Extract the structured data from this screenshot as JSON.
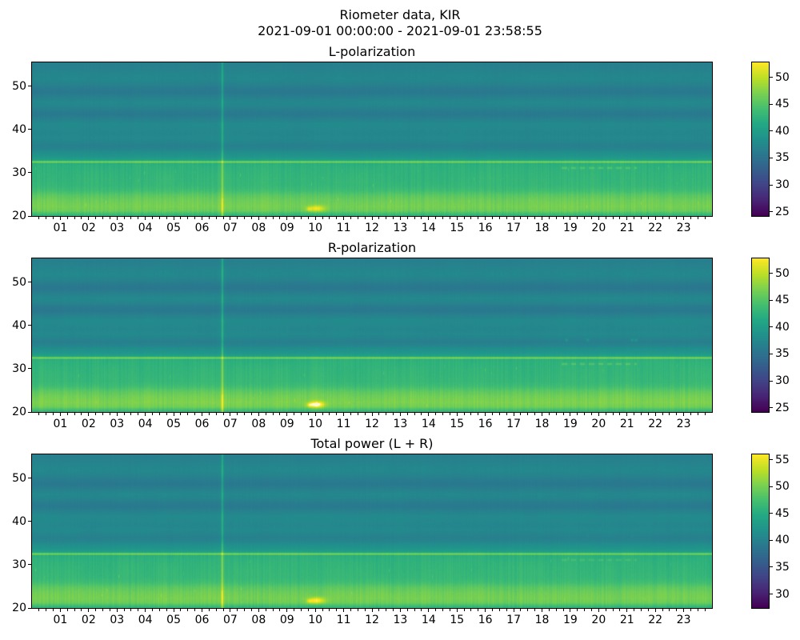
{
  "figure": {
    "title": "Riometer data, KIR",
    "date_range": "2021-09-01 00:00:00 - 2021-09-01 23:58:55"
  },
  "chart_data": [
    {
      "type": "heatmap",
      "title": "L-polarization",
      "x": {
        "label": "",
        "range_hours": [
          0,
          24
        ],
        "tick_labels": [
          "01",
          "02",
          "03",
          "04",
          "05",
          "06",
          "07",
          "08",
          "09",
          "10",
          "11",
          "12",
          "13",
          "14",
          "15",
          "16",
          "17",
          "18",
          "19",
          "20",
          "21",
          "22",
          "23"
        ],
        "minor_tick_step_hours": 0.25
      },
      "y": {
        "label": "",
        "range": [
          20,
          55.5
        ],
        "ticks": [
          20,
          30,
          40,
          50
        ],
        "tick_labels": [
          "20",
          "30",
          "40",
          "50"
        ]
      },
      "colorbar": {
        "cmap": "viridis",
        "vmin": 24.2,
        "vmax": 52.8,
        "ticks": [
          25,
          30,
          35,
          40,
          45,
          50
        ],
        "tick_labels": [
          "25",
          "30",
          "35",
          "40",
          "45",
          "50"
        ]
      },
      "profile": [
        [
          20.0,
          42.2
        ],
        [
          20.6,
          44.2
        ],
        [
          21.2,
          46.3
        ],
        [
          22.2,
          46.9
        ],
        [
          23.6,
          46.4
        ],
        [
          24.8,
          45.4
        ],
        [
          25.9,
          43.9
        ],
        [
          26.9,
          43.2
        ],
        [
          28.5,
          43.0
        ],
        [
          30.0,
          42.8
        ],
        [
          31.5,
          42.5
        ],
        [
          32.15,
          42.2
        ],
        [
          32.38,
          45.5
        ],
        [
          32.5,
          48.2
        ],
        [
          32.62,
          45.5
        ],
        [
          32.9,
          40.6
        ],
        [
          33.6,
          39.2
        ],
        [
          34.6,
          38.3
        ],
        [
          35.4,
          37.2
        ],
        [
          36.2,
          36.6
        ],
        [
          37.0,
          37.1
        ],
        [
          38.0,
          37.6
        ],
        [
          39.0,
          37.3
        ],
        [
          40.0,
          37.5
        ],
        [
          41.2,
          37.7
        ],
        [
          42.2,
          36.9
        ],
        [
          43.4,
          35.8
        ],
        [
          44.4,
          36.2
        ],
        [
          45.4,
          37.2
        ],
        [
          46.4,
          37.5
        ],
        [
          47.4,
          36.6
        ],
        [
          48.6,
          35.7
        ],
        [
          49.6,
          36.1
        ],
        [
          50.6,
          36.9
        ],
        [
          51.6,
          37.4
        ],
        [
          52.6,
          37.3
        ],
        [
          53.6,
          36.9
        ],
        [
          54.6,
          36.6
        ],
        [
          55.5,
          36.4
        ]
      ],
      "events": [
        {
          "kind": "vline",
          "t": 6.72,
          "sigma": 0.022,
          "amp": 4.6,
          "halo_amp": 0.6,
          "halo_sigma": 0.09
        },
        {
          "kind": "blob",
          "t": 10.05,
          "f": 21.7,
          "sigma_t": 0.2,
          "sigma_f": 0.5,
          "amp": 6.0
        },
        {
          "kind": "blob",
          "t": 9.78,
          "f": 21.6,
          "sigma_t": 0.07,
          "sigma_f": 0.35,
          "amp": 3.0
        },
        {
          "kind": "dashes",
          "f": 31.1,
          "t_start": 18.7,
          "t_end": 21.3,
          "sigma_f": 0.16,
          "amp": 2.6,
          "period": 0.32,
          "duty": 0.55
        }
      ]
    },
    {
      "type": "heatmap",
      "title": "R-polarization",
      "x": {
        "label": "",
        "range_hours": [
          0,
          24
        ],
        "tick_labels": [
          "01",
          "02",
          "03",
          "04",
          "05",
          "06",
          "07",
          "08",
          "09",
          "10",
          "11",
          "12",
          "13",
          "14",
          "15",
          "16",
          "17",
          "18",
          "19",
          "20",
          "21",
          "22",
          "23"
        ],
        "minor_tick_step_hours": 0.25
      },
      "y": {
        "label": "",
        "range": [
          20,
          55.5
        ],
        "ticks": [
          20,
          30,
          40,
          50
        ],
        "tick_labels": [
          "20",
          "30",
          "40",
          "50"
        ]
      },
      "colorbar": {
        "cmap": "viridis",
        "vmin": 24.2,
        "vmax": 52.8,
        "ticks": [
          25,
          30,
          35,
          40,
          45,
          50
        ],
        "tick_labels": [
          "25",
          "30",
          "35",
          "40",
          "45",
          "50"
        ]
      },
      "profile": [
        [
          20.0,
          42.2
        ],
        [
          20.6,
          44.4
        ],
        [
          21.2,
          46.5
        ],
        [
          22.2,
          47.2
        ],
        [
          23.6,
          46.6
        ],
        [
          24.8,
          45.5
        ],
        [
          25.9,
          43.9
        ],
        [
          26.9,
          43.2
        ],
        [
          28.5,
          43.0
        ],
        [
          30.0,
          42.8
        ],
        [
          31.5,
          42.5
        ],
        [
          32.15,
          42.2
        ],
        [
          32.38,
          45.5
        ],
        [
          32.5,
          48.2
        ],
        [
          32.62,
          45.5
        ],
        [
          32.9,
          40.6
        ],
        [
          33.6,
          39.2
        ],
        [
          34.6,
          38.3
        ],
        [
          35.4,
          37.1
        ],
        [
          36.2,
          36.4
        ],
        [
          37.0,
          37.0
        ],
        [
          38.0,
          37.6
        ],
        [
          39.0,
          37.3
        ],
        [
          40.0,
          37.5
        ],
        [
          41.2,
          37.7
        ],
        [
          42.2,
          36.9
        ],
        [
          43.4,
          35.6
        ],
        [
          44.4,
          36.1
        ],
        [
          45.4,
          37.2
        ],
        [
          46.4,
          37.5
        ],
        [
          47.4,
          36.6
        ],
        [
          48.6,
          35.5
        ],
        [
          49.6,
          36.0
        ],
        [
          50.6,
          36.9
        ],
        [
          51.6,
          37.4
        ],
        [
          52.6,
          37.3
        ],
        [
          53.6,
          36.9
        ],
        [
          54.6,
          36.6
        ],
        [
          55.5,
          36.4
        ]
      ],
      "events": [
        {
          "kind": "vline",
          "t": 6.72,
          "sigma": 0.022,
          "amp": 5.2,
          "halo_amp": 0.7,
          "halo_sigma": 0.09
        },
        {
          "kind": "blob",
          "t": 10.05,
          "f": 21.7,
          "sigma_t": 0.18,
          "sigma_f": 0.5,
          "amp": 9.5
        },
        {
          "kind": "blob",
          "t": 9.8,
          "f": 21.6,
          "sigma_t": 0.07,
          "sigma_f": 0.35,
          "amp": 4.0
        },
        {
          "kind": "dashes",
          "f": 31.1,
          "t_start": 18.7,
          "t_end": 21.3,
          "sigma_f": 0.16,
          "amp": 2.6,
          "period": 0.32,
          "duty": 0.55
        },
        {
          "kind": "dots",
          "f": 36.6,
          "times": [
            18.87,
            19.62,
            21.18,
            21.32
          ],
          "sigma_t": 0.035,
          "sigma_f": 0.22,
          "amp": 2.8
        }
      ]
    },
    {
      "type": "heatmap",
      "title": "Total power (L + R)",
      "x": {
        "label": "",
        "range_hours": [
          0,
          24
        ],
        "tick_labels": [
          "01",
          "02",
          "03",
          "04",
          "05",
          "06",
          "07",
          "08",
          "09",
          "10",
          "11",
          "12",
          "13",
          "14",
          "15",
          "16",
          "17",
          "18",
          "19",
          "20",
          "21",
          "22",
          "23"
        ],
        "minor_tick_step_hours": 0.25
      },
      "y": {
        "label": "",
        "range": [
          20,
          55.5
        ],
        "ticks": [
          20,
          30,
          40,
          50
        ],
        "tick_labels": [
          "20",
          "30",
          "40",
          "50"
        ]
      },
      "colorbar": {
        "cmap": "viridis",
        "vmin": 27.4,
        "vmax": 56.0,
        "ticks": [
          30,
          35,
          40,
          45,
          50,
          55
        ],
        "tick_labels": [
          "30",
          "35",
          "40",
          "45",
          "50",
          "55"
        ]
      },
      "profile": [
        [
          20.0,
          45.4
        ],
        [
          20.6,
          47.4
        ],
        [
          21.2,
          49.5
        ],
        [
          22.2,
          50.1
        ],
        [
          23.6,
          49.6
        ],
        [
          24.8,
          48.6
        ],
        [
          25.9,
          47.1
        ],
        [
          26.9,
          46.4
        ],
        [
          28.5,
          46.2
        ],
        [
          30.0,
          46.0
        ],
        [
          31.5,
          45.7
        ],
        [
          32.15,
          45.4
        ],
        [
          32.38,
          48.7
        ],
        [
          32.5,
          51.4
        ],
        [
          32.62,
          48.7
        ],
        [
          32.9,
          43.8
        ],
        [
          33.6,
          42.4
        ],
        [
          34.6,
          41.5
        ],
        [
          35.4,
          40.4
        ],
        [
          36.2,
          39.8
        ],
        [
          37.0,
          40.3
        ],
        [
          38.0,
          40.8
        ],
        [
          39.0,
          40.5
        ],
        [
          40.0,
          40.7
        ],
        [
          41.2,
          40.9
        ],
        [
          42.2,
          40.1
        ],
        [
          43.4,
          39.0
        ],
        [
          44.4,
          39.4
        ],
        [
          45.4,
          40.4
        ],
        [
          46.4,
          40.7
        ],
        [
          47.4,
          39.8
        ],
        [
          48.6,
          38.9
        ],
        [
          49.6,
          39.3
        ],
        [
          50.6,
          40.1
        ],
        [
          51.6,
          40.6
        ],
        [
          52.6,
          40.5
        ],
        [
          53.6,
          40.1
        ],
        [
          54.6,
          39.8
        ],
        [
          55.5,
          39.6
        ]
      ],
      "events": [
        {
          "kind": "vline",
          "t": 6.72,
          "sigma": 0.022,
          "amp": 4.9,
          "halo_amp": 0.6,
          "halo_sigma": 0.09
        },
        {
          "kind": "blob",
          "t": 10.05,
          "f": 21.7,
          "sigma_t": 0.19,
          "sigma_f": 0.5,
          "amp": 7.2
        },
        {
          "kind": "blob",
          "t": 9.8,
          "f": 21.6,
          "sigma_t": 0.07,
          "sigma_f": 0.35,
          "amp": 3.2
        },
        {
          "kind": "dashes",
          "f": 31.1,
          "t_start": 18.7,
          "t_end": 21.3,
          "sigma_f": 0.16,
          "amp": 1.7,
          "period": 0.32,
          "duty": 0.55
        },
        {
          "kind": "dots",
          "f": 36.6,
          "times": [
            19.62,
            21.18
          ],
          "sigma_t": 0.035,
          "sigma_f": 0.22,
          "amp": 1.1
        }
      ]
    }
  ]
}
